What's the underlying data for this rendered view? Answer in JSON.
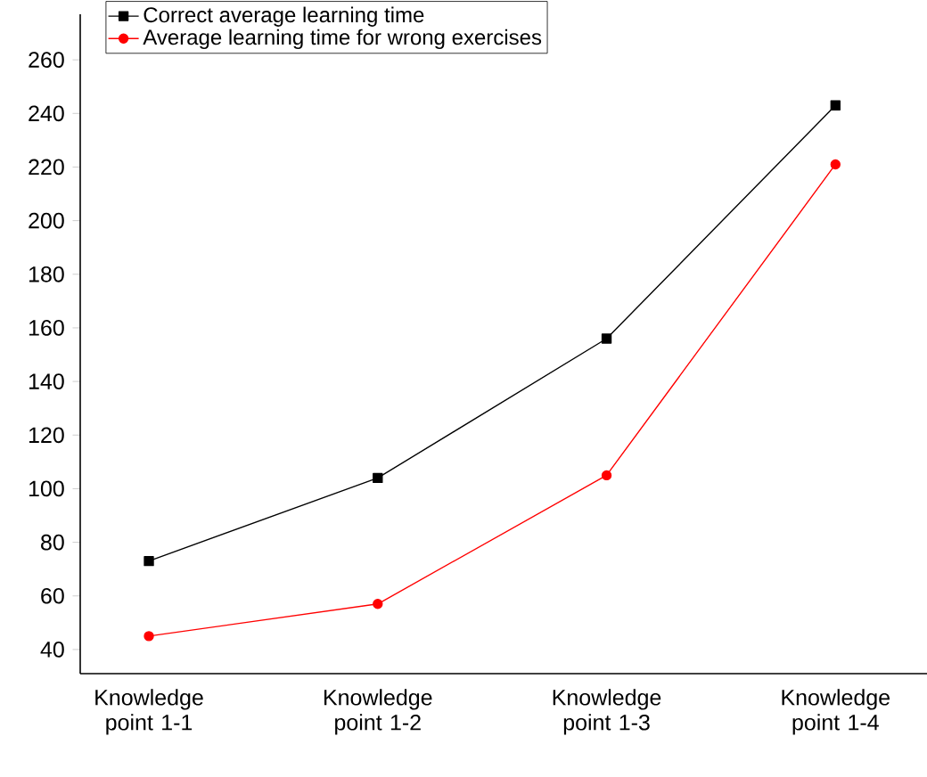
{
  "chart_data": {
    "type": "line",
    "categories": [
      "Knowledge point 1-1",
      "Knowledge point 1-2",
      "Knowledge point 1-3",
      "Knowledge point 1-4"
    ],
    "series": [
      {
        "name": "Correct average learning time",
        "color": "#000000",
        "marker": "square",
        "values": [
          73,
          104,
          156,
          243
        ]
      },
      {
        "name": "Average learning time for wrong exercises",
        "color": "#ff0000",
        "marker": "circle",
        "values": [
          45,
          57,
          105,
          221
        ]
      }
    ],
    "ylim": [
      31,
      277
    ],
    "yticks": [
      40,
      60,
      80,
      100,
      120,
      140,
      160,
      180,
      200,
      220,
      240,
      260
    ],
    "grid": false,
    "legend": "top left"
  }
}
